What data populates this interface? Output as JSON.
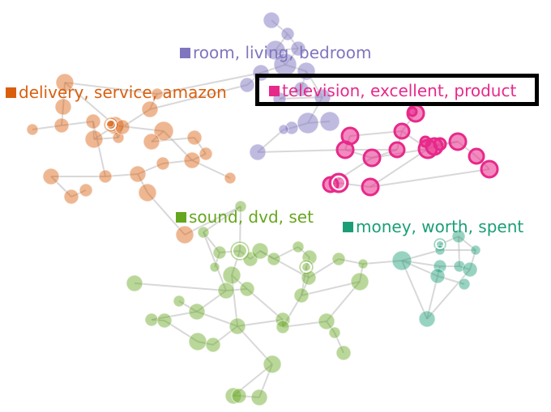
{
  "clusters": [
    {
      "id": "room",
      "label": "room, living, bedroom",
      "color": "#7f76bf"
    },
    {
      "id": "delivery",
      "label": "delivery, service, amazon",
      "color": "#d95f0e"
    },
    {
      "id": "television",
      "label": "television, excellent, product",
      "color": "#e7298a",
      "selected": true
    },
    {
      "id": "sound",
      "label": "sound, dvd, set",
      "color": "#66a61e"
    },
    {
      "id": "money",
      "label": "money, worth, spent",
      "color": "#1b9e77"
    }
  ]
}
